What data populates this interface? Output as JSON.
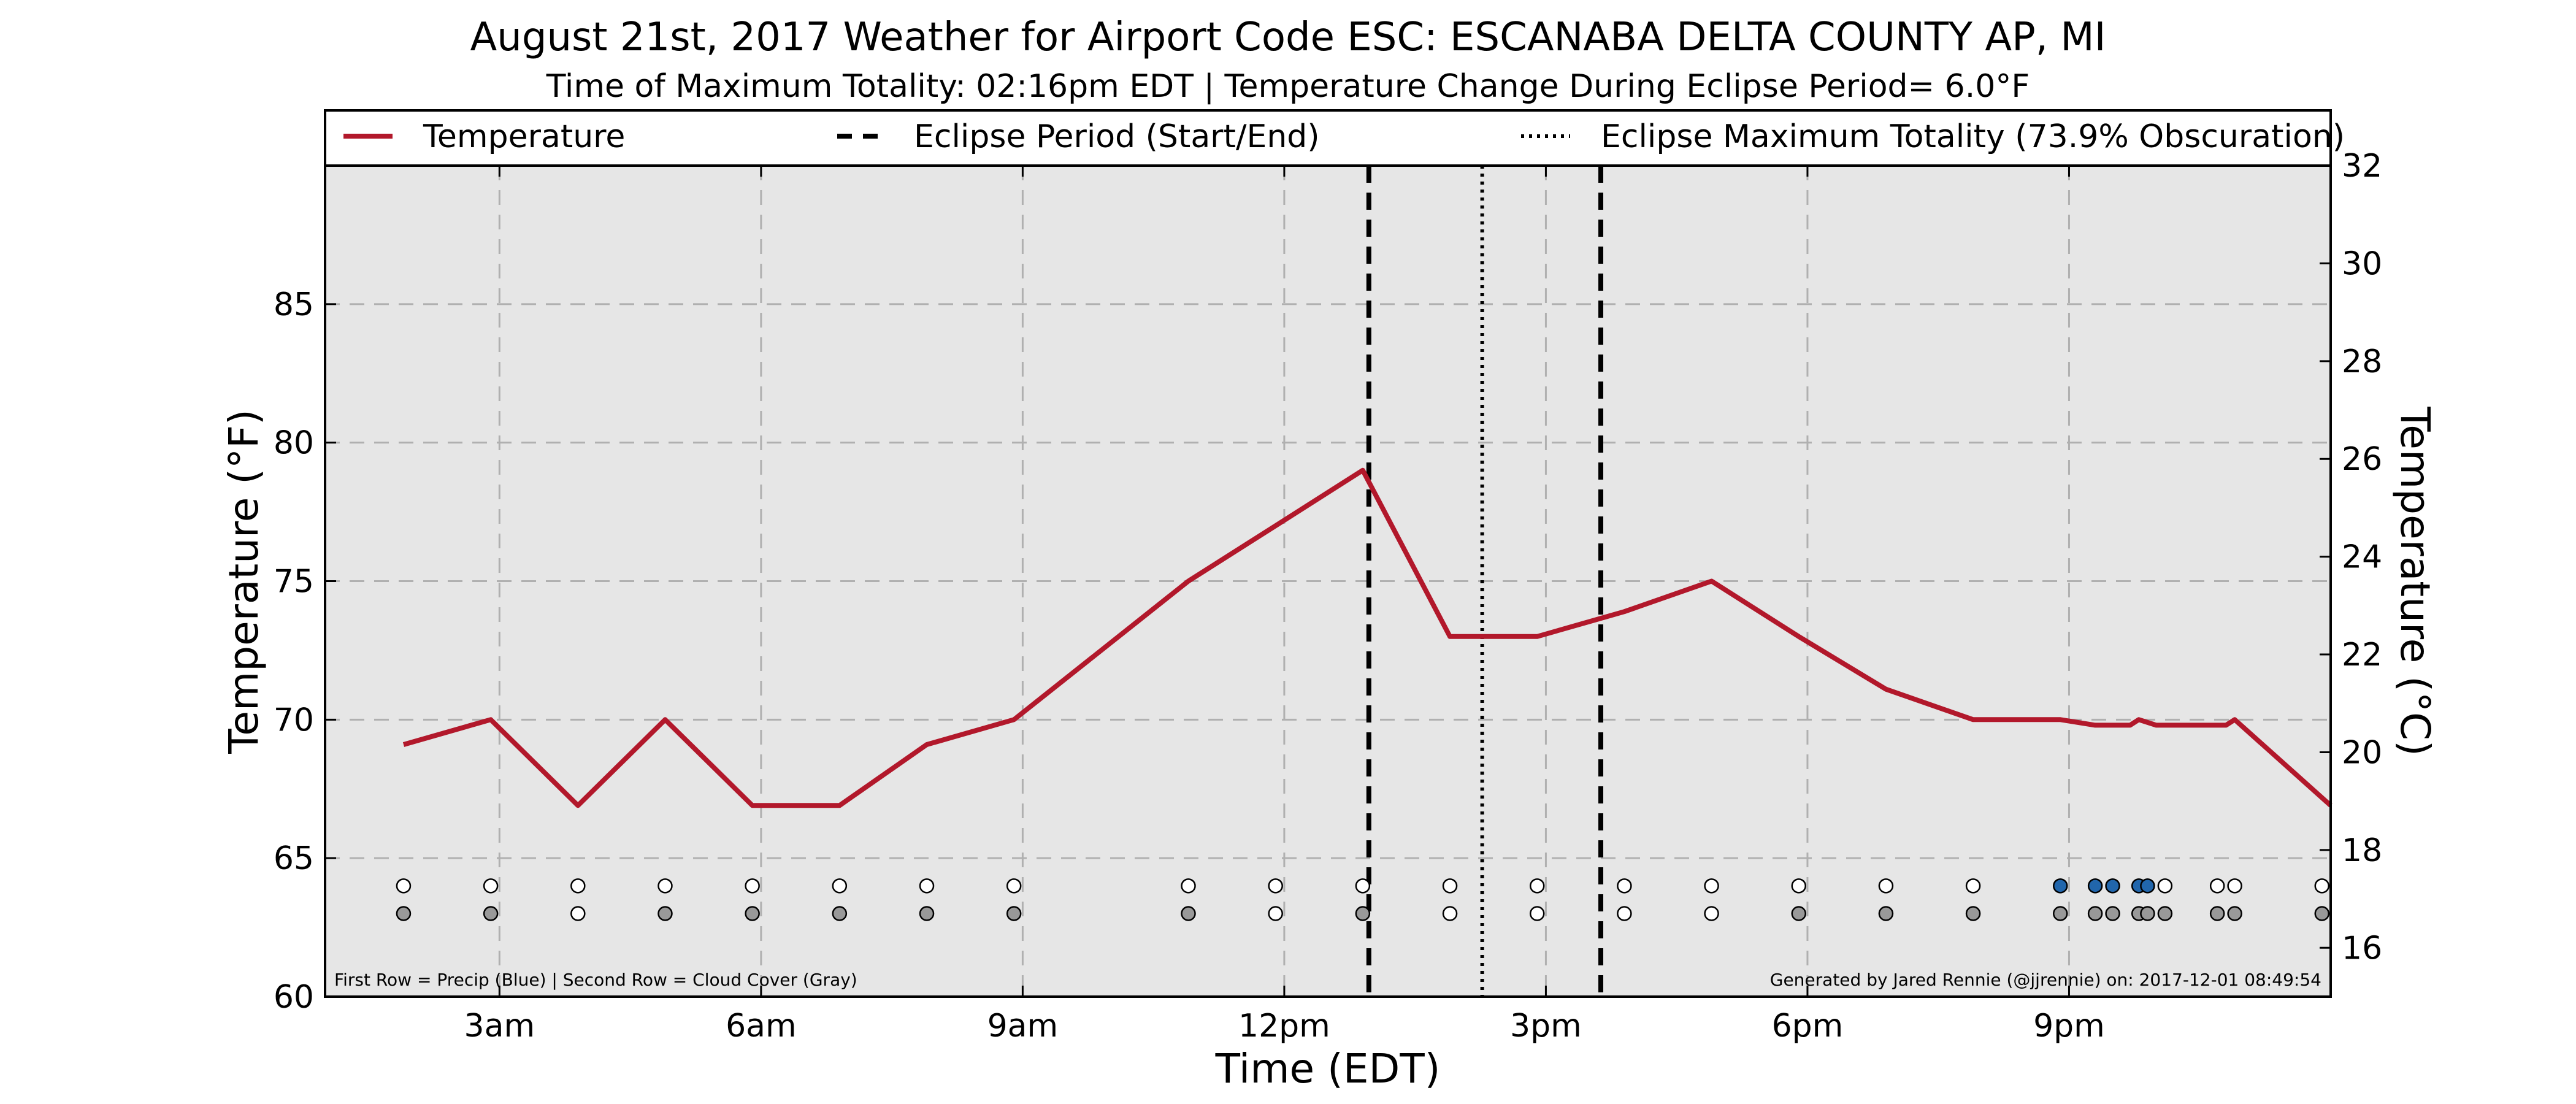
{
  "chart_data": {
    "type": "line",
    "title": "August 21st, 2017 Weather for Airport Code ESC: ESCANABA DELTA COUNTY AP, MI",
    "subtitle": "Time of Maximum Totality: 02:16pm EDT | Temperature Change During Eclipse Period= 6.0°F",
    "xlabel": "Time (EDT)",
    "ylabel": "Temperature (°F)",
    "ylabel_right": "Temperature (°C)",
    "xlim": [
      1.0,
      24.0
    ],
    "ylim": [
      60,
      90
    ],
    "ylim_right": [
      15.0,
      32.0
    ],
    "x_ticks": [
      {
        "x": 3,
        "label": "3am"
      },
      {
        "x": 6,
        "label": "6am"
      },
      {
        "x": 9,
        "label": "9am"
      },
      {
        "x": 12,
        "label": "12pm"
      },
      {
        "x": 15,
        "label": "3pm"
      },
      {
        "x": 18,
        "label": "6pm"
      },
      {
        "x": 21,
        "label": "9pm"
      }
    ],
    "y_ticks": [
      60,
      65,
      70,
      75,
      80,
      85
    ],
    "y_ticks_right": [
      16,
      18,
      20,
      22,
      24,
      26,
      28,
      30,
      32
    ],
    "grid": true,
    "legend_position": "top",
    "legend": [
      {
        "label": "Temperature",
        "style": "solid"
      },
      {
        "label": "Eclipse Period (Start/End)",
        "style": "dashed"
      },
      {
        "label": "Eclipse Maximum Totality (73.9% Obscuration)",
        "style": "dotted"
      }
    ],
    "series": [
      {
        "name": "Temperature",
        "color": "#b2182b",
        "x": [
          1.9,
          2.9,
          3.9,
          4.9,
          5.9,
          6.9,
          7.9,
          8.9,
          10.9,
          11.9,
          12.9,
          13.9,
          14.9,
          15.9,
          16.9,
          17.9,
          18.9,
          19.9,
          20.9,
          21.3,
          21.7,
          21.8,
          22.0,
          22.4,
          22.8,
          22.9,
          24.0
        ],
        "y": [
          69.1,
          70.0,
          66.9,
          70.0,
          66.9,
          66.9,
          69.1,
          70.0,
          75.0,
          77.0,
          79.0,
          73.0,
          73.0,
          73.9,
          75.0,
          73.0,
          71.1,
          70.0,
          70.0,
          69.8,
          69.8,
          70.0,
          69.8,
          69.8,
          69.8,
          70.0,
          66.9
        ]
      }
    ],
    "eclipse_period": [
      12.97,
      15.63
    ],
    "eclipse_max": 14.27,
    "precip_row": {
      "y": 64,
      "points": [
        {
          "x": 1.9,
          "c": "white"
        },
        {
          "x": 2.9,
          "c": "white"
        },
        {
          "x": 3.9,
          "c": "white"
        },
        {
          "x": 4.9,
          "c": "white"
        },
        {
          "x": 5.9,
          "c": "white"
        },
        {
          "x": 6.9,
          "c": "white"
        },
        {
          "x": 7.9,
          "c": "white"
        },
        {
          "x": 8.9,
          "c": "white"
        },
        {
          "x": 10.9,
          "c": "white"
        },
        {
          "x": 11.9,
          "c": "white"
        },
        {
          "x": 12.9,
          "c": "white"
        },
        {
          "x": 13.9,
          "c": "white"
        },
        {
          "x": 14.9,
          "c": "white"
        },
        {
          "x": 15.9,
          "c": "white"
        },
        {
          "x": 16.9,
          "c": "white"
        },
        {
          "x": 17.9,
          "c": "white"
        },
        {
          "x": 18.9,
          "c": "white"
        },
        {
          "x": 19.9,
          "c": "white"
        },
        {
          "x": 20.9,
          "c": "blue"
        },
        {
          "x": 21.3,
          "c": "blue"
        },
        {
          "x": 21.5,
          "c": "blue"
        },
        {
          "x": 21.8,
          "c": "blue"
        },
        {
          "x": 21.9,
          "c": "blue"
        },
        {
          "x": 22.1,
          "c": "white"
        },
        {
          "x": 22.7,
          "c": "white"
        },
        {
          "x": 22.9,
          "c": "white"
        },
        {
          "x": 23.9,
          "c": "white"
        }
      ]
    },
    "cloud_row": {
      "y": 63,
      "points": [
        {
          "x": 1.9,
          "c": "gray"
        },
        {
          "x": 2.9,
          "c": "gray"
        },
        {
          "x": 3.9,
          "c": "white"
        },
        {
          "x": 4.9,
          "c": "gray"
        },
        {
          "x": 5.9,
          "c": "gray"
        },
        {
          "x": 6.9,
          "c": "gray"
        },
        {
          "x": 7.9,
          "c": "gray"
        },
        {
          "x": 8.9,
          "c": "gray"
        },
        {
          "x": 10.9,
          "c": "gray"
        },
        {
          "x": 11.9,
          "c": "white"
        },
        {
          "x": 12.9,
          "c": "gray"
        },
        {
          "x": 13.9,
          "c": "white"
        },
        {
          "x": 14.9,
          "c": "white"
        },
        {
          "x": 15.9,
          "c": "white"
        },
        {
          "x": 16.9,
          "c": "white"
        },
        {
          "x": 17.9,
          "c": "gray"
        },
        {
          "x": 18.9,
          "c": "gray"
        },
        {
          "x": 19.9,
          "c": "gray"
        },
        {
          "x": 20.9,
          "c": "gray"
        },
        {
          "x": 21.3,
          "c": "gray"
        },
        {
          "x": 21.5,
          "c": "gray"
        },
        {
          "x": 21.8,
          "c": "gray"
        },
        {
          "x": 21.9,
          "c": "gray"
        },
        {
          "x": 22.1,
          "c": "gray"
        },
        {
          "x": 22.7,
          "c": "gray"
        },
        {
          "x": 22.9,
          "c": "gray"
        },
        {
          "x": 23.9,
          "c": "gray"
        }
      ]
    },
    "colors": {
      "temperature": "#b2182b",
      "plot_background": "#e6e6e6",
      "grid": "#b0b0b0",
      "precip": "#2166ac",
      "cloud": "#999999",
      "empty": "#ffffff"
    },
    "footnote_left": "First Row = Precip (Blue) | Second Row = Cloud Cover (Gray)",
    "footnote_right": "Generated by Jared Rennie (@jjrennie) on: 2017-12-01 08:49:54"
  }
}
